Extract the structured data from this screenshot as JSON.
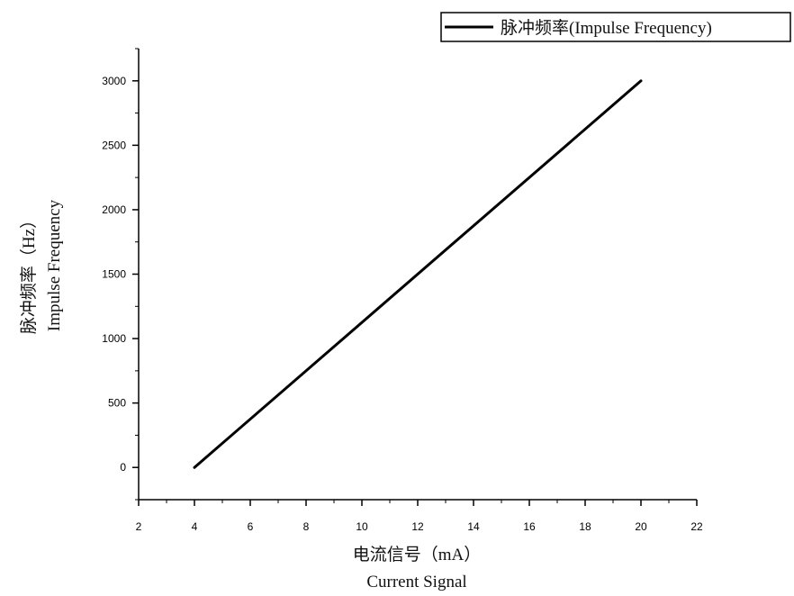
{
  "chart_data": {
    "type": "line",
    "title": "",
    "xlabel_cn": "电流信号（mA）",
    "xlabel_en": "Current Signal",
    "ylabel_cn": "脉冲频率（Hz）",
    "ylabel_en": "Impulse Frequency",
    "xlim": [
      2,
      22
    ],
    "ylim": [
      -250,
      3250
    ],
    "xticks": [
      2,
      4,
      6,
      8,
      10,
      12,
      14,
      16,
      18,
      20,
      22
    ],
    "yticks": [
      0,
      500,
      1000,
      1500,
      2000,
      2500,
      3000
    ],
    "grid": false,
    "legend_position": "top-right",
    "series": [
      {
        "name": "脉冲频率(Impulse Frequency)",
        "color": "#000000",
        "x": [
          4,
          20
        ],
        "y": [
          0,
          3000
        ]
      }
    ]
  }
}
